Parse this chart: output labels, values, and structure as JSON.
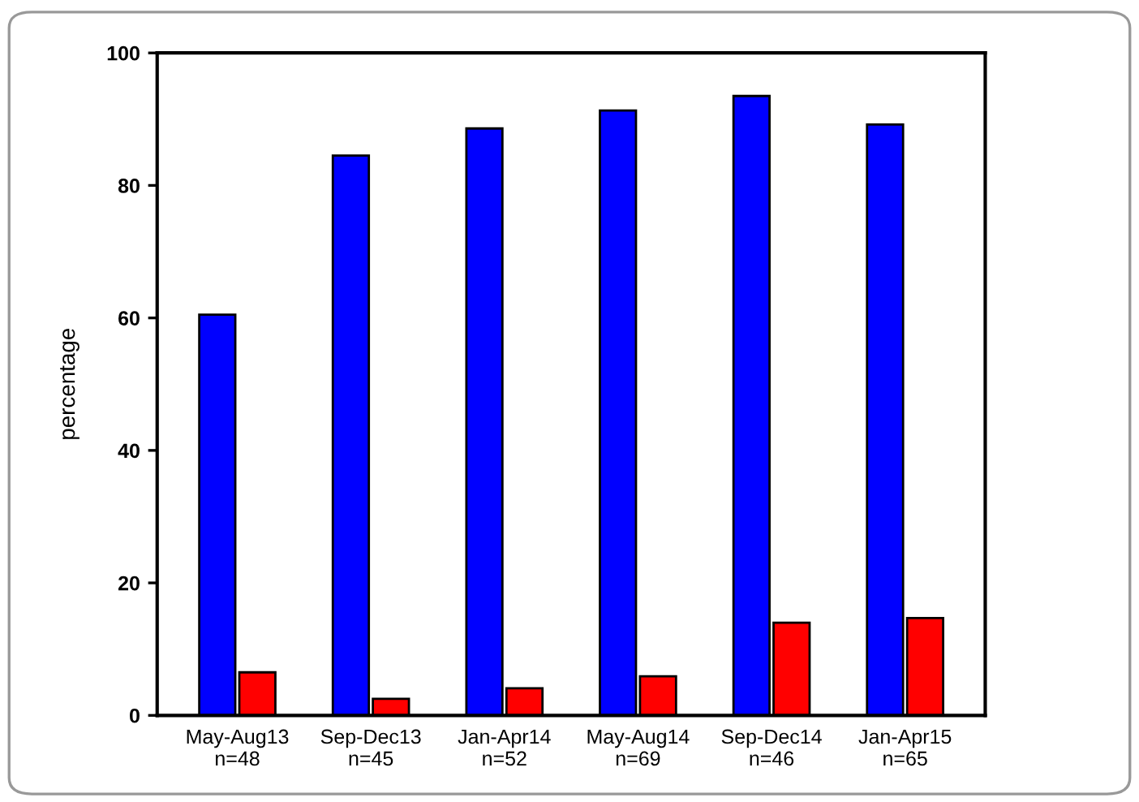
{
  "chart_data": {
    "type": "bar",
    "ylabel": "percentage",
    "categories": [
      "May-Aug13\nn=48",
      "Sep-Dec13\nn=45",
      "Jan-Apr14\nn=52",
      "May-Aug14\nn=69",
      "Sep-Dec14\nn=46",
      "Jan-Apr15\nn=65"
    ],
    "series": [
      {
        "color": "#0000ff",
        "values": [
          60.5,
          84.5,
          88.6,
          91.3,
          93.5,
          89.2
        ]
      },
      {
        "color": "#ff0000",
        "values": [
          6.5,
          2.5,
          4.1,
          5.9,
          14.0,
          14.7
        ]
      }
    ],
    "ylim": [
      0,
      100
    ],
    "yticks": [
      0,
      20,
      40,
      60,
      80,
      100
    ],
    "grid": false,
    "legend": false
  }
}
